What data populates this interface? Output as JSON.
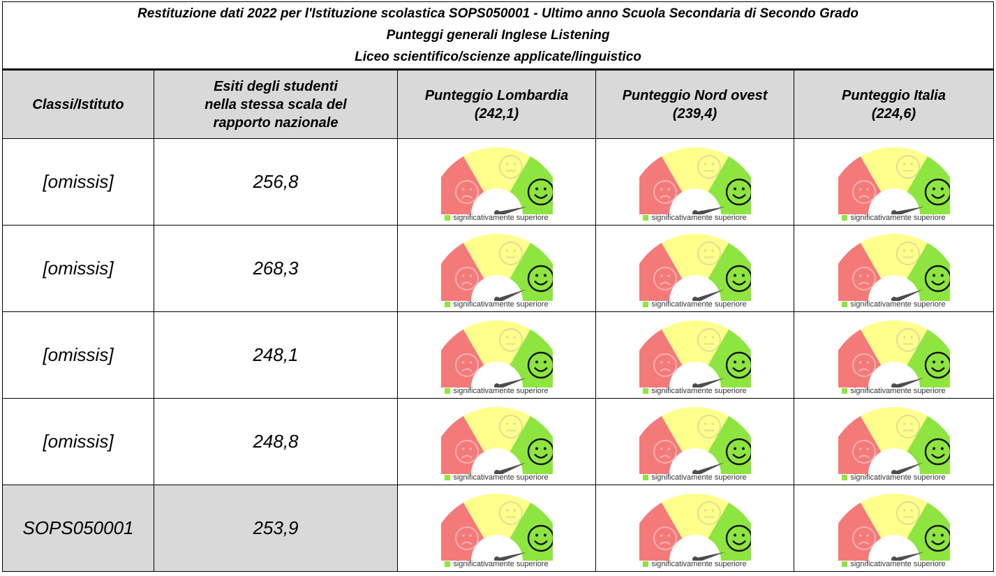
{
  "title": {
    "line1": "Restituzione dati 2022 per l'Istituzione scolastica SOPS050001 - Ultimo anno Scuola Secondaria di Secondo Grado",
    "line2": "Punteggi generali Inglese Listening",
    "line3": "Liceo scientifico/scienze applicate/linguistico"
  },
  "headers": {
    "col1": "Classi/Istituto",
    "col2": [
      "Esiti degli studenti",
      "nella stessa scala del",
      "rapporto nazionale"
    ],
    "col3": [
      "Punteggio Lombardia",
      "(242,1)"
    ],
    "col4": [
      "Punteggio Nord ovest",
      "(239,4)"
    ],
    "col5": [
      "Punteggio Italia",
      "(224,6)"
    ]
  },
  "gauge": {
    "legend": "significativamente superiore",
    "colors": {
      "low": "#f47a7a",
      "mid": "#ffff8c",
      "high": "#8ee53f",
      "needle": "#4d4d4d",
      "legend_swatch": "#8ee53f"
    },
    "icons": [
      "sad-face-icon",
      "neutral-face-icon",
      "happy-face-icon"
    ]
  },
  "rows": [
    {
      "name": "[omissis]",
      "score": "256,8",
      "needle_level": 0.92
    },
    {
      "name": "[omissis]",
      "score": "268,3",
      "needle_level": 0.88
    },
    {
      "name": "[omissis]",
      "score": "248,1",
      "needle_level": 0.9
    },
    {
      "name": "[omissis]",
      "score": "248,8",
      "needle_level": 0.88
    },
    {
      "name": "SOPS050001",
      "score": "253,9",
      "needle_level": 0.91
    }
  ]
}
